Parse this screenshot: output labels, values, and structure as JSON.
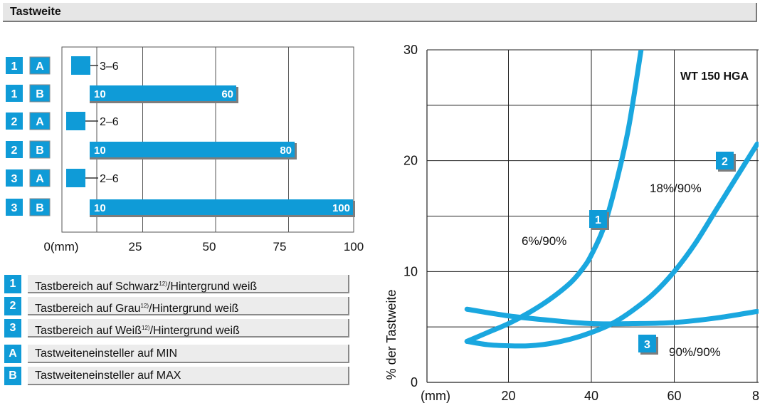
{
  "header": {
    "title": "Tastweite"
  },
  "legend": [
    {
      "key": "1",
      "text": "Tastbereich auf Schwarz",
      "sup": "12)",
      "rest": "/Hintergrund weiß"
    },
    {
      "key": "2",
      "text": "Tastbereich auf Grau",
      "sup": "12)",
      "rest": "/Hintergrund weiß"
    },
    {
      "key": "3",
      "text": "Tastbereich auf Weiß",
      "sup": "12)",
      "rest": "/Hintergrund weiß"
    },
    {
      "key": "A",
      "text": "Tastweiteneinsteller auf MIN",
      "sup": "",
      "rest": ""
    },
    {
      "key": "B",
      "text": "Tastweiteneinsteller auf MAX",
      "sup": "",
      "rest": ""
    }
  ],
  "chart_data": [
    {
      "type": "bar",
      "categories": [
        [
          "1",
          "A"
        ],
        [
          "1",
          "B"
        ],
        [
          "2",
          "A"
        ],
        [
          "2",
          "B"
        ],
        [
          "3",
          "A"
        ],
        [
          "3",
          "B"
        ]
      ],
      "ranges": [
        [
          3,
          6
        ],
        [
          10,
          60
        ],
        [
          2,
          6
        ],
        [
          10,
          80
        ],
        [
          2,
          6
        ],
        [
          10,
          100
        ]
      ],
      "labels": [
        [
          "3–6"
        ],
        [
          "10",
          "60"
        ],
        [
          "2–6"
        ],
        [
          "10",
          "80"
        ],
        [
          "2–6"
        ],
        [
          "10",
          "100"
        ]
      ],
      "x_ticks": [
        "0(mm)",
        "25",
        "50",
        "75",
        "100"
      ],
      "xlim": [
        0,
        100
      ],
      "color": "#0f9bd7"
    },
    {
      "type": "line",
      "title": "WT 150 HGA",
      "ylabel": "% der Tastweite",
      "x_ticks": [
        "(mm)",
        "20",
        "40",
        "60",
        "8"
      ],
      "y_ticks": [
        "0",
        "10",
        "20",
        "30"
      ],
      "xlim": [
        0,
        80
      ],
      "ylim": [
        0,
        30
      ],
      "color": "#1aa7df",
      "series": [
        {
          "name": "6%/90%",
          "marker": "1",
          "x": [
            10,
            15,
            20,
            25,
            30,
            35,
            38,
            40,
            43,
            46,
            49,
            52
          ],
          "y": [
            3.7,
            4.5,
            5.3,
            6.3,
            7.5,
            9.0,
            10.3,
            11.5,
            14,
            18,
            23,
            30
          ]
        },
        {
          "name": "18%/90%",
          "marker": "2",
          "x": [
            10,
            15,
            20,
            25,
            30,
            35,
            40,
            45,
            50,
            55,
            60,
            65,
            70,
            75,
            80
          ],
          "y": [
            3.7,
            3.4,
            3.3,
            3.3,
            3.5,
            3.9,
            4.5,
            5.3,
            6.5,
            8.0,
            10,
            12.5,
            15.5,
            18.5,
            21.5
          ]
        },
        {
          "name": "90%/90%",
          "marker": "3",
          "x": [
            10,
            20,
            30,
            40,
            50,
            60,
            70,
            80
          ],
          "y": [
            6.6,
            6.0,
            5.6,
            5.3,
            5.3,
            5.4,
            5.8,
            6.4
          ]
        }
      ]
    }
  ]
}
